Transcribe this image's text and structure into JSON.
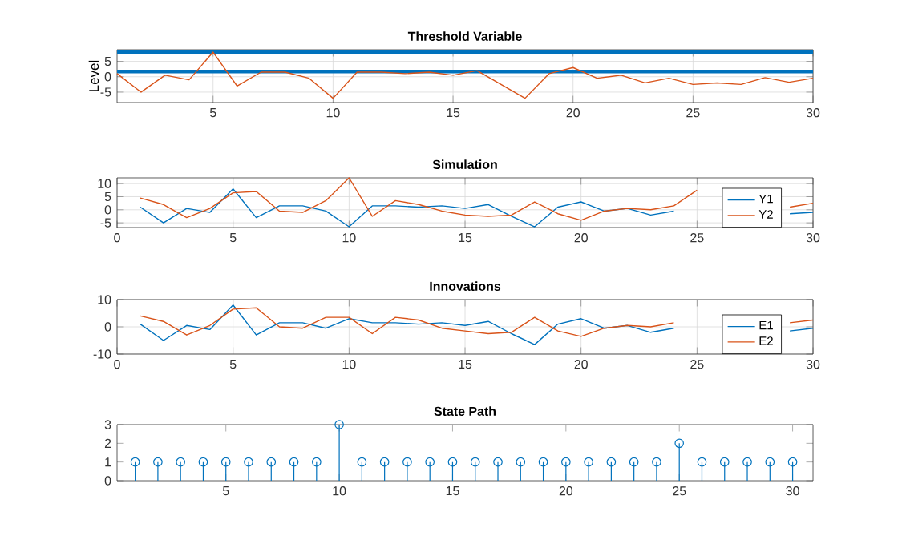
{
  "chart_data": [
    {
      "type": "line",
      "title": "Threshold Variable",
      "ylabel": "Level",
      "xlim": [
        1,
        30
      ],
      "ylim": [
        -8.4,
        8.8
      ],
      "xticks": [
        5,
        10,
        15,
        20,
        25,
        30
      ],
      "yticks": [
        -5,
        0,
        5
      ],
      "grid": true,
      "x": [
        1,
        2,
        3,
        4,
        5,
        6,
        7,
        8,
        9,
        10,
        11,
        12,
        13,
        14,
        15,
        16,
        17,
        18,
        19,
        20,
        21,
        22,
        23,
        24,
        25,
        26,
        27,
        28,
        29,
        30
      ],
      "series": [
        {
          "color": "#d95319",
          "values": [
            1,
            -5,
            0.5,
            -1,
            8,
            -3,
            1.5,
            1.5,
            -0.5,
            -7,
            1.5,
            1.5,
            1,
            1.5,
            0.5,
            2,
            -2.5,
            -7,
            1,
            3,
            -0.5,
            0.5,
            -2,
            -0.5,
            -2.5,
            -2,
            -2.5,
            -0.3,
            -1.8,
            -0.5
          ]
        }
      ],
      "ref_lines": [
        {
          "axis": "y",
          "value": 8,
          "color": "#0072bd"
        },
        {
          "axis": "y",
          "value": 1.7,
          "color": "#0072bd"
        }
      ]
    },
    {
      "type": "line",
      "title": "Simulation",
      "xlim": [
        0,
        30
      ],
      "ylim": [
        -6.8,
        12.2
      ],
      "xticks": [
        0,
        5,
        10,
        15,
        20,
        25,
        30
      ],
      "yticks": [
        -5,
        0,
        5,
        10
      ],
      "grid": true,
      "legend": "bottom right",
      "x": [
        1,
        2,
        3,
        4,
        5,
        6,
        7,
        8,
        9,
        10,
        11,
        12,
        13,
        14,
        15,
        16,
        17,
        18,
        19,
        20,
        21,
        22,
        23,
        24,
        25,
        26,
        27,
        28,
        29,
        30
      ],
      "series": [
        {
          "name": "Y1",
          "color": "#0072bd",
          "values": [
            1,
            -5,
            0.5,
            -1,
            8,
            -3,
            1.5,
            1.5,
            -0.5,
            -6.5,
            1.5,
            1.5,
            1,
            1.5,
            0.5,
            2,
            -2.5,
            -6.5,
            1,
            3,
            -0.5,
            0.5,
            -2,
            -0.5,
            null,
            null,
            null,
            null,
            -1.5,
            -1
          ]
        },
        {
          "name": "Y2",
          "color": "#d95319",
          "values": [
            4.5,
            2,
            -3,
            0.5,
            6.5,
            7,
            -0.5,
            -1,
            3.5,
            12.2,
            -2.5,
            3.5,
            2,
            -0.5,
            -2,
            -2.5,
            -2,
            3,
            -1.5,
            -4,
            -0.5,
            0.5,
            0,
            1.5,
            7.5,
            null,
            null,
            null,
            1,
            2.5
          ]
        }
      ]
    },
    {
      "type": "line",
      "title": "Innovations",
      "xlim": [
        0,
        30
      ],
      "ylim": [
        -10,
        10
      ],
      "xticks": [
        0,
        5,
        10,
        15,
        20,
        25,
        30
      ],
      "yticks": [
        -10,
        0,
        10
      ],
      "grid": true,
      "legend": "bottom right",
      "x": [
        1,
        2,
        3,
        4,
        5,
        6,
        7,
        8,
        9,
        10,
        11,
        12,
        13,
        14,
        15,
        16,
        17,
        18,
        19,
        20,
        21,
        22,
        23,
        24,
        25,
        26,
        27,
        28,
        29,
        30
      ],
      "series": [
        {
          "name": "E1",
          "color": "#0072bd",
          "values": [
            1,
            -5,
            0.5,
            -1,
            8,
            -3,
            1.5,
            1.5,
            -0.5,
            3,
            1.5,
            1.5,
            1,
            1.5,
            0.5,
            2,
            -2.5,
            -6.5,
            1,
            3,
            -0.5,
            0.5,
            -2,
            -0.5,
            null,
            null,
            null,
            null,
            -1.5,
            -0.5
          ]
        },
        {
          "name": "E2",
          "color": "#d95319",
          "values": [
            4,
            2,
            -3,
            0.5,
            6.5,
            7,
            0,
            -0.5,
            3.5,
            3.5,
            -2.5,
            3.5,
            2.5,
            -0.5,
            -1.5,
            -2.5,
            -2,
            3.5,
            -1.5,
            -3.5,
            -0.5,
            0.5,
            0,
            1.5,
            null,
            null,
            null,
            null,
            1.5,
            2.5
          ]
        }
      ]
    },
    {
      "type": "lollipop",
      "title": "State Path",
      "xlim": [
        0.2,
        30.9
      ],
      "ylim": [
        0,
        3
      ],
      "xticks": [
        5,
        10,
        15,
        20,
        25,
        30
      ],
      "yticks": [
        0,
        1,
        2,
        3
      ],
      "marker": "circle",
      "x": [
        1,
        2,
        3,
        4,
        5,
        6,
        7,
        8,
        9,
        10,
        11,
        12,
        13,
        14,
        15,
        16,
        17,
        18,
        19,
        20,
        21,
        22,
        23,
        24,
        25,
        26,
        27,
        28,
        29,
        30
      ],
      "series": [
        {
          "color": "#0072bd",
          "values": [
            1,
            1,
            1,
            1,
            1,
            1,
            1,
            1,
            1,
            3,
            1,
            1,
            1,
            1,
            1,
            1,
            1,
            1,
            1,
            1,
            1,
            1,
            1,
            1,
            2,
            1,
            1,
            1,
            1,
            1
          ]
        }
      ]
    }
  ]
}
